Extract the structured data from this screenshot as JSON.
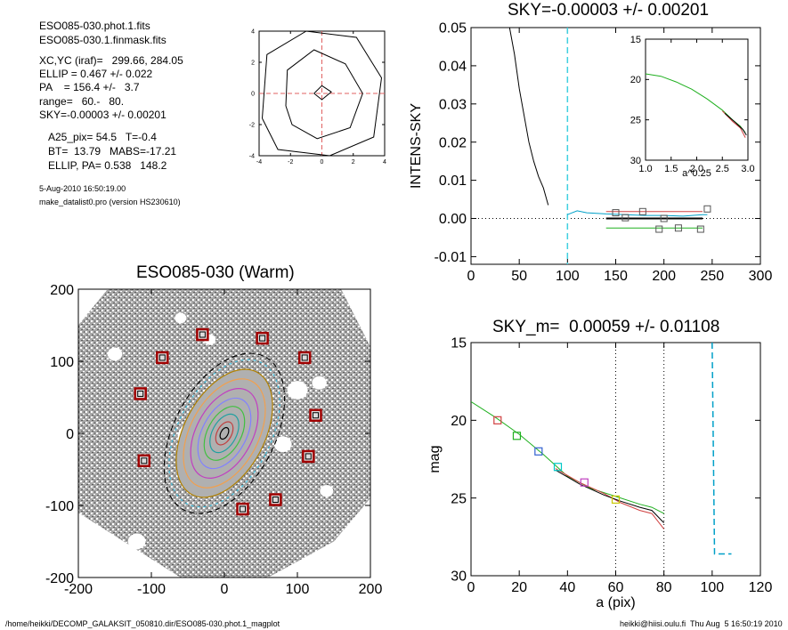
{
  "header": {
    "file1": "ESO085-030.phot.1.fits",
    "file2": "ESO085-030.1.finmask.fits",
    "params": [
      "XC,YC (iraf)=   299.66, 284.05",
      "ELLIP = 0.467 +/- 0.022",
      "PA    = 156.4 +/-   3.7",
      "range=   60.-   80.",
      "SKY=-0.00003 +/- 0.00201"
    ],
    "params2": [
      "A25_pix= 54.5   T=-0.4",
      "BT=  13.79   MABS=-17.21",
      "ELLIP, PA= 0.538   148.2"
    ],
    "date": "5-Aug-2010 16:50:19.00",
    "program": "make_datalist0.pro (version HS230610)"
  },
  "footer": {
    "path": "/home/heikki/DECOMP_GALAKSIT_050810.dir/ESO085-030.phot.1_magplot",
    "user": "heikki@hiisi.oulu.fi  Thu Aug  5 16:50:19 2010"
  },
  "chart_data": [
    {
      "id": "center-contour",
      "type": "contour",
      "xlim": [
        -4,
        4
      ],
      "ylim": [
        -4,
        4
      ],
      "xticks": [
        "-4",
        "-2",
        "0",
        "2",
        "4"
      ],
      "yticks": [
        "-4",
        "-2",
        "0",
        "2",
        "4"
      ],
      "crosshair": [
        0,
        0
      ],
      "contours": [
        [
          [
            -0.5,
            0
          ],
          [
            0,
            0.5
          ],
          [
            0.6,
            0.1
          ],
          [
            0,
            -0.4
          ]
        ],
        [
          [
            -2.3,
            -0.8
          ],
          [
            -2.2,
            1.5
          ],
          [
            -0.5,
            2.8
          ],
          [
            1.5,
            1.9
          ],
          [
            2.6,
            0
          ],
          [
            1.8,
            -2.2
          ],
          [
            -0.3,
            -2.9
          ],
          [
            -1.9,
            -2.0
          ]
        ],
        [
          [
            -3.8,
            -1.6
          ],
          [
            -3.5,
            2.5
          ],
          [
            -1.0,
            4.0
          ],
          [
            2.2,
            3.6
          ],
          [
            3.8,
            1.0
          ],
          [
            3.3,
            -2.8
          ],
          [
            0.5,
            -4.0
          ],
          [
            -2.8,
            -3.6
          ]
        ]
      ]
    },
    {
      "id": "sky-profile",
      "type": "line",
      "title": "SKY=-0.00003 +/- 0.00201",
      "ylabel": "INTENS-SKY",
      "xlim": [
        0,
        300
      ],
      "ylim": [
        -0.012,
        0.05
      ],
      "xticks": [
        "0",
        "50",
        "100",
        "150",
        "200",
        "250",
        "300"
      ],
      "yticks": [
        "-0.01",
        "0.00",
        "0.01",
        "0.02",
        "0.03",
        "0.04",
        "0.05"
      ],
      "vline": 100,
      "series": [
        {
          "color": "#000000",
          "x": [
            40,
            45,
            50,
            55,
            60,
            65,
            70,
            75,
            80
          ],
          "y": [
            0.05,
            0.043,
            0.034,
            0.027,
            0.02,
            0.015,
            0.011,
            0.008,
            0.0035
          ]
        },
        {
          "color": "#00a0c8",
          "x": [
            100,
            110,
            120,
            140,
            160,
            180,
            200,
            220,
            240,
            245
          ],
          "y": [
            0.001,
            0.002,
            0.0015,
            0.0012,
            0.001,
            0.0008,
            0.0008,
            0.0006,
            0.001,
            0.001
          ]
        },
        {
          "color": "#d04040",
          "x": [
            140,
            160,
            180,
            200,
            220,
            240
          ],
          "y": [
            0.0018,
            0.0018,
            0.0018,
            0.0018,
            0.0018,
            0.0018
          ]
        },
        {
          "color": "#20b020",
          "x": [
            140,
            160,
            180,
            200,
            220,
            240
          ],
          "y": [
            -0.0025,
            -0.0025,
            -0.0025,
            -0.0025,
            -0.0025,
            -0.0025
          ]
        },
        {
          "color": "#000000",
          "x": [
            140,
            160,
            180,
            200,
            220,
            240
          ],
          "y": [
            0.0,
            0.0,
            0.0,
            0.0,
            0.0,
            0.0
          ]
        }
      ],
      "markers": [
        [
          150,
          0.0015
        ],
        [
          178,
          0.0018
        ],
        [
          195,
          -0.0028
        ],
        [
          215,
          -0.0025
        ],
        [
          238,
          -0.0028
        ],
        [
          245,
          0.0025
        ],
        [
          160,
          0.0002
        ],
        [
          200,
          0.0
        ]
      ]
    },
    {
      "id": "sky-inset",
      "type": "line",
      "xlabel": "a^0.25",
      "xlim": [
        1.0,
        3.0
      ],
      "ylim": [
        15,
        30
      ],
      "yreversed": true,
      "xticks": [
        "1.0",
        "1.5",
        "2.0",
        "2.5",
        "3.0"
      ],
      "yticks": [
        "15",
        "20",
        "25",
        "30"
      ],
      "series": [
        {
          "color": "#20b020",
          "x": [
            1.0,
            1.3,
            1.6,
            1.9,
            2.2,
            2.5,
            2.7,
            2.85,
            2.95
          ],
          "y": [
            19.3,
            19.6,
            20.3,
            21.2,
            22.4,
            23.8,
            25.0,
            25.8,
            26.6
          ]
        },
        {
          "color": "#d04040",
          "x": [
            2.5,
            2.7,
            2.85,
            2.95
          ],
          "y": [
            23.9,
            25.2,
            26.0,
            27.2
          ]
        },
        {
          "color": "#000000",
          "x": [
            2.55,
            2.75,
            2.9,
            2.97
          ],
          "y": [
            24.2,
            25.3,
            26.2,
            26.9
          ]
        }
      ]
    },
    {
      "id": "galaxy-image",
      "type": "image",
      "title": "ESO085-030 (Warm)",
      "xlim": [
        -200,
        200
      ],
      "ylim": [
        -200,
        200
      ],
      "xticks": [
        "-200",
        "-100",
        "0",
        "100",
        "200"
      ],
      "yticks": [
        "-200",
        "-100",
        "0",
        "100",
        "200"
      ],
      "ellipse": {
        "cx": 0,
        "cy": 0,
        "rx": 55,
        "ry": 95,
        "angle_deg": 28
      },
      "sky_boxes": [
        [
          -30,
          137
        ],
        [
          -85,
          105
        ],
        [
          -115,
          55
        ],
        [
          -110,
          -38
        ],
        [
          52,
          132
        ],
        [
          110,
          105
        ],
        [
          125,
          25
        ],
        [
          115,
          -32
        ],
        [
          70,
          -92
        ],
        [
          25,
          -105
        ]
      ]
    },
    {
      "id": "mag-profile",
      "type": "line",
      "title": "SKY_m=  0.00059 +/- 0.01108",
      "xlabel": "a (pix)",
      "ylabel": "mag",
      "xlim": [
        0,
        120
      ],
      "ylim": [
        15,
        30
      ],
      "yreversed": true,
      "xticks": [
        "0",
        "20",
        "40",
        "60",
        "80",
        "100",
        "120"
      ],
      "yticks": [
        "15",
        "20",
        "25",
        "30"
      ],
      "vlines_dotted": [
        60,
        80
      ],
      "vline_dashed": 100,
      "series": [
        {
          "color": "#20b020",
          "x": [
            0,
            10,
            20,
            30,
            40,
            50,
            60,
            70,
            75,
            80
          ],
          "y": [
            18.8,
            19.8,
            20.9,
            22.2,
            23.6,
            24.4,
            24.9,
            25.4,
            25.6,
            26.0
          ]
        },
        {
          "color": "#d04040",
          "x": [
            35,
            45,
            55,
            62,
            70,
            75,
            80
          ],
          "y": [
            23.1,
            24.0,
            24.7,
            25.3,
            25.8,
            26.0,
            27.0
          ]
        },
        {
          "color": "#000000",
          "x": [
            35,
            45,
            55,
            62,
            70,
            75,
            80
          ],
          "y": [
            23.2,
            24.1,
            24.8,
            25.2,
            25.6,
            25.8,
            26.6
          ]
        },
        {
          "color": "#00a0c8",
          "x": [
            100,
            101,
            108
          ],
          "y": [
            15,
            28.6,
            28.6
          ]
        }
      ],
      "markers": [
        {
          "x": 11,
          "y": 20.0,
          "color": "#d04040"
        },
        {
          "x": 19,
          "y": 21.0,
          "color": "#20b020"
        },
        {
          "x": 28,
          "y": 22.0,
          "color": "#3060d0"
        },
        {
          "x": 36,
          "y": 23.0,
          "color": "#00c8c8"
        },
        {
          "x": 47,
          "y": 24.0,
          "color": "#c040c0"
        },
        {
          "x": 60,
          "y": 25.1,
          "color": "#c8c800"
        }
      ]
    }
  ]
}
